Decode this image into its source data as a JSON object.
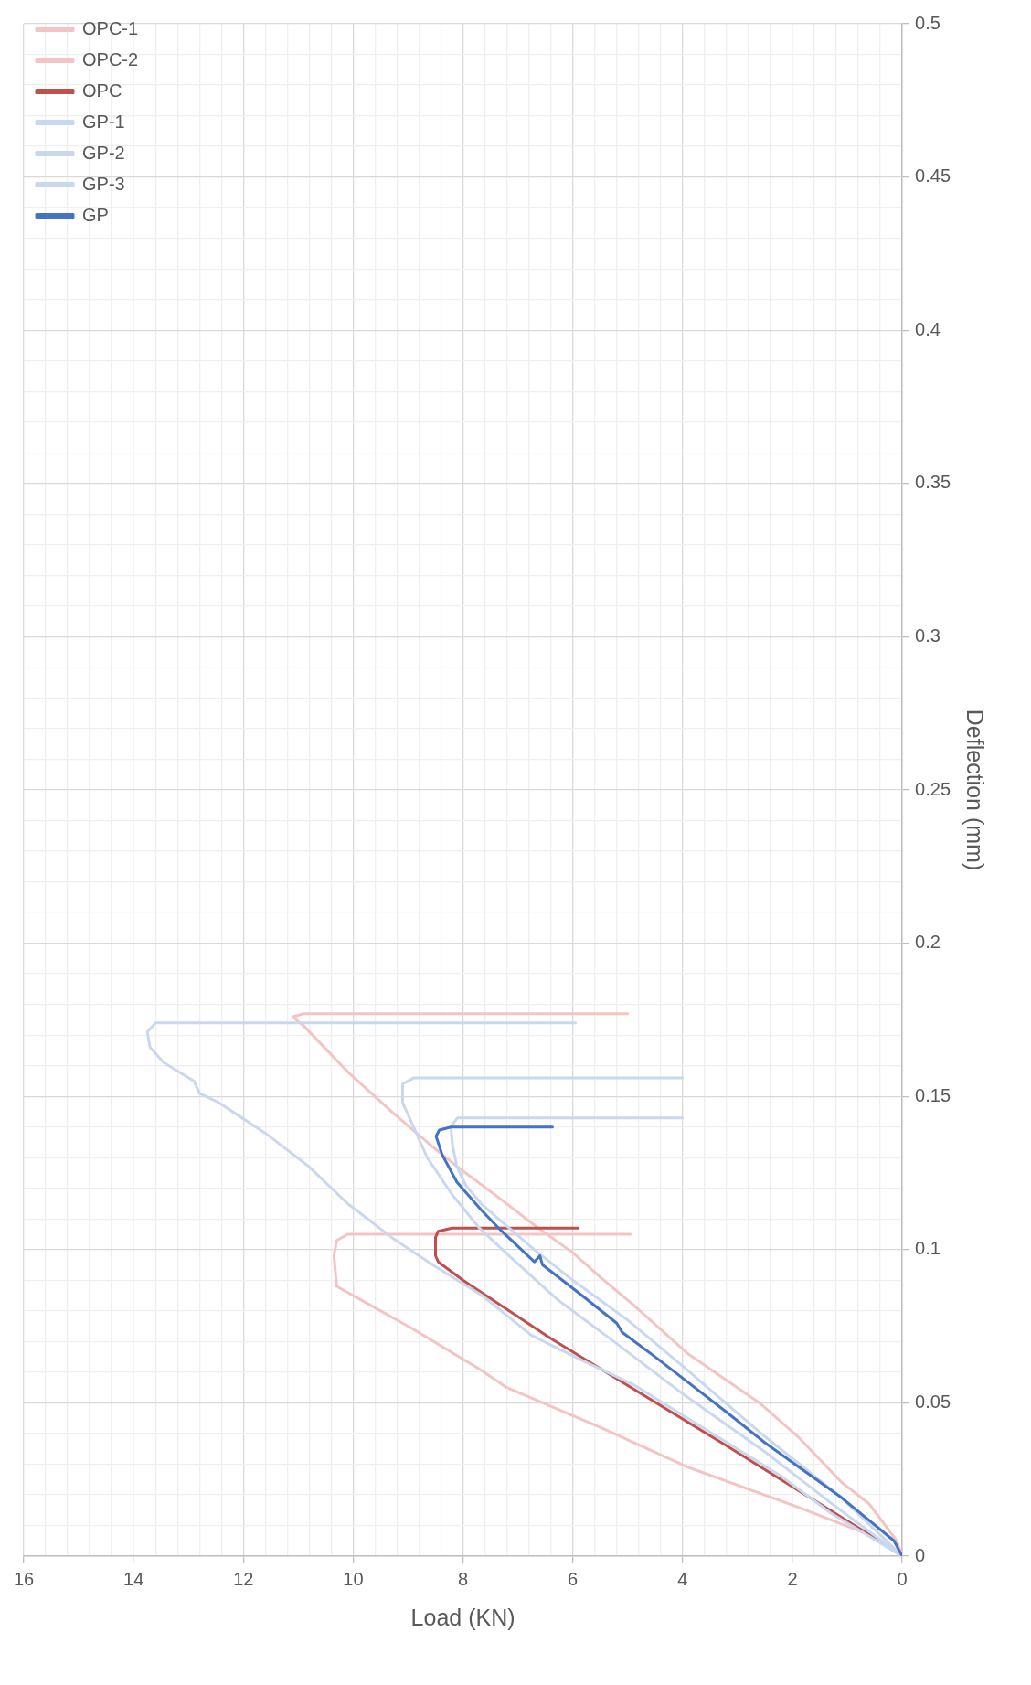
{
  "chart_data": {
    "type": "line",
    "xlabel": "Load (KN)",
    "ylabel": "Deflection (mm)",
    "xlim": [
      16,
      0
    ],
    "xticks": [
      0,
      {
        "value": 0.4,
        "label": null
      },
      {
        "value": 0.8,
        "label": null
      },
      {
        "value": 1.2,
        "label": null
      },
      {
        "value": 1.6,
        "label": null
      },
      2,
      {
        "value": 2.4,
        "label": null
      },
      {
        "value": 2.8,
        "label": null
      },
      {
        "value": 3.2,
        "label": null
      },
      {
        "value": 3.6,
        "label": null
      },
      4,
      {
        "value": 4.4,
        "label": null
      },
      {
        "value": 4.8,
        "label": null
      },
      {
        "value": 5.2,
        "label": null
      },
      {
        "value": 5.6,
        "label": null
      },
      6,
      {
        "value": 6.4,
        "label": null
      },
      {
        "value": 6.8,
        "label": null
      },
      {
        "value": 7.2,
        "label": null
      },
      {
        "value": 7.6,
        "label": null
      },
      8,
      {
        "value": 8.4,
        "label": null
      },
      {
        "value": 8.8,
        "label": null
      },
      {
        "value": 9.2,
        "label": null
      },
      {
        "value": 9.6,
        "label": null
      },
      10,
      {
        "value": 10.4,
        "label": null
      },
      {
        "value": 10.8,
        "label": null
      },
      {
        "value": 11.2,
        "label": null
      },
      {
        "value": 11.6,
        "label": null
      },
      12,
      {
        "value": 12.4,
        "label": null
      },
      {
        "value": 12.8,
        "label": null
      },
      {
        "value": 13.2,
        "label": null
      },
      {
        "value": 13.6,
        "label": null
      },
      14,
      {
        "value": 14.4,
        "label": null
      },
      {
        "value": 14.8,
        "label": null
      },
      {
        "value": 15.2,
        "label": null
      },
      {
        "value": 15.6,
        "label": null
      },
      16
    ],
    "ylim": [
      0,
      0.5
    ],
    "yticks": [
      0,
      {
        "value": 0.01,
        "label": null
      },
      {
        "value": 0.02,
        "label": null
      },
      {
        "value": 0.03,
        "label": null
      },
      {
        "value": 0.04,
        "label": null
      },
      0.05,
      {
        "value": 0.06,
        "label": null
      },
      {
        "value": 0.07,
        "label": null
      },
      {
        "value": 0.08,
        "label": null
      },
      {
        "value": 0.09,
        "label": null
      },
      0.1,
      {
        "value": 0.11,
        "label": null
      },
      {
        "value": 0.12,
        "label": null
      },
      {
        "value": 0.13,
        "label": null
      },
      {
        "value": 0.14,
        "label": null
      },
      0.15,
      {
        "value": 0.16,
        "label": null
      },
      {
        "value": 0.17,
        "label": null
      },
      {
        "value": 0.18,
        "label": null
      },
      {
        "value": 0.19,
        "label": null
      },
      0.2,
      {
        "value": 0.21,
        "label": null
      },
      {
        "value": 0.22,
        "label": null
      },
      {
        "value": 0.23,
        "label": null
      },
      {
        "value": 0.24,
        "label": null
      },
      0.25,
      {
        "value": 0.26,
        "label": null
      },
      {
        "value": 0.27,
        "label": null
      },
      {
        "value": 0.28,
        "label": null
      },
      {
        "value": 0.29,
        "label": null
      },
      0.3,
      {
        "value": 0.31,
        "label": null
      },
      {
        "value": 0.32,
        "label": null
      },
      {
        "value": 0.33,
        "label": null
      },
      {
        "value": 0.34,
        "label": null
      },
      0.35,
      {
        "value": 0.36,
        "label": null
      },
      {
        "value": 0.37,
        "label": null
      },
      {
        "value": 0.38,
        "label": null
      },
      {
        "value": 0.39,
        "label": null
      },
      0.4,
      {
        "value": 0.41,
        "label": null
      },
      {
        "value": 0.42,
        "label": null
      },
      {
        "value": 0.43,
        "label": null
      },
      {
        "value": 0.44,
        "label": null
      },
      0.45,
      {
        "value": 0.46,
        "label": null
      },
      {
        "value": 0.47,
        "label": null
      },
      {
        "value": 0.48,
        "label": null
      },
      {
        "value": 0.49,
        "label": null
      },
      0.5
    ],
    "grid": true,
    "legend": "top left",
    "marker": "none",
    "series": [
      {
        "name": "OPC-1",
        "color": "#f3c5c2",
        "x": [
          0,
          0.6,
          1.9,
          3.9,
          5.5,
          7.2,
          7.7,
          8.9,
          9.7,
          10.3,
          10.35,
          10.3,
          10.1,
          9.5,
          4.95
        ],
        "values": [
          0,
          0.007,
          0.016,
          0.029,
          0.042,
          0.055,
          0.061,
          0.074,
          0.082,
          0.088,
          0.098,
          0.103,
          0.105,
          0.105,
          0.105
        ]
      },
      {
        "name": "OPC-2",
        "color": "#f3c5c2",
        "x": [
          0,
          0.1,
          0.6,
          1.1,
          1.9,
          2.6,
          3.9,
          4.9,
          5.5,
          6.0,
          6.7,
          7.35,
          8.1,
          8.65,
          9.3,
          10.1,
          10.9,
          11.1,
          10.9,
          5.0
        ],
        "values": [
          0,
          0.005,
          0.017,
          0.024,
          0.039,
          0.05,
          0.066,
          0.082,
          0.091,
          0.099,
          0.108,
          0.117,
          0.127,
          0.135,
          0.145,
          0.158,
          0.173,
          0.176,
          0.177,
          0.177
        ]
      },
      {
        "name": "OPC",
        "color": "#c0504d",
        "x": [
          0,
          0.6,
          3.2,
          6.4,
          8.0,
          8.45,
          8.5,
          8.5,
          8.45,
          8.2,
          5.9
        ],
        "values": [
          0,
          0.007,
          0.036,
          0.071,
          0.09,
          0.096,
          0.098,
          0.104,
          0.106,
          0.107,
          0.107
        ]
      },
      {
        "name": "GP-1",
        "color": "#c9d8ef",
        "x": [
          0,
          1.3,
          2.2,
          3.1,
          4.0,
          4.9,
          5.85,
          6.75,
          7.65,
          8.55,
          9.3,
          10.1,
          10.8,
          11.6,
          12.45,
          12.8,
          12.9,
          13.45,
          13.7,
          13.75,
          13.6,
          5.95
        ],
        "values": [
          0,
          0.014,
          0.026,
          0.036,
          0.046,
          0.056,
          0.064,
          0.072,
          0.085,
          0.095,
          0.104,
          0.115,
          0.127,
          0.138,
          0.148,
          0.151,
          0.155,
          0.161,
          0.166,
          0.171,
          0.174,
          0.174
        ]
      },
      {
        "name": "GP-2",
        "color": "#c9d8ef",
        "x": [
          0,
          1.2,
          2.5,
          4.0,
          5.25,
          6.3,
          7.1,
          7.7,
          8.2,
          8.65,
          8.9,
          9.1,
          9.1,
          8.9,
          4.0
        ],
        "values": [
          0,
          0.016,
          0.034,
          0.053,
          0.07,
          0.084,
          0.097,
          0.107,
          0.118,
          0.13,
          0.14,
          0.148,
          0.154,
          0.156,
          0.156
        ]
      },
      {
        "name": "GP-3",
        "color": "#c9d8ef",
        "x": [
          0,
          1.1,
          2.5,
          4.0,
          5.0,
          6.0,
          6.7,
          7.35,
          7.67,
          7.95,
          8.11,
          8.19,
          8.22,
          8.1,
          4.0
        ],
        "values": [
          0,
          0.019,
          0.039,
          0.062,
          0.077,
          0.09,
          0.1,
          0.11,
          0.115,
          0.121,
          0.127,
          0.134,
          0.14,
          0.143,
          0.143
        ]
      },
      {
        "name": "GP",
        "color": "#4472c4",
        "x": [
          0,
          0.15,
          1.1,
          2.5,
          3.2,
          4.5,
          5.1,
          5.2,
          5.9,
          6.55,
          6.6,
          6.7,
          7.35,
          7.67,
          8.11,
          8.38,
          8.49,
          8.43,
          8.22,
          6.37
        ],
        "values": [
          0,
          0.005,
          0.019,
          0.037,
          0.047,
          0.065,
          0.073,
          0.076,
          0.086,
          0.095,
          0.098,
          0.096,
          0.107,
          0.113,
          0.122,
          0.131,
          0.137,
          0.139,
          0.14,
          0.14
        ]
      }
    ]
  }
}
